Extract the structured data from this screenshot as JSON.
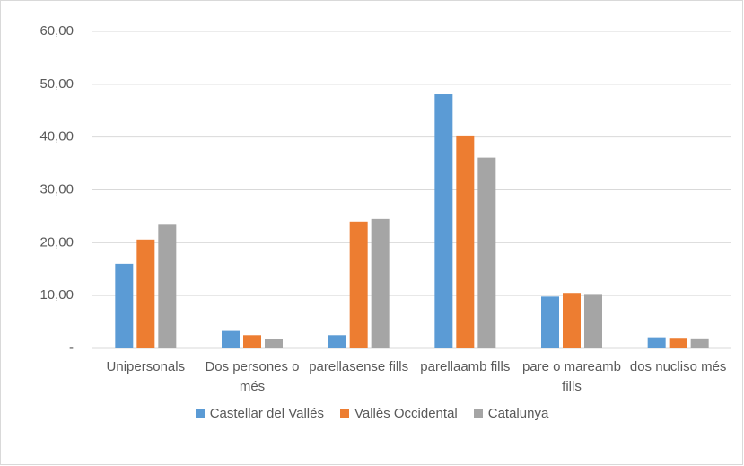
{
  "chart_data": {
    "type": "bar",
    "categories": [
      "Unipersonals",
      "Dos persones o més",
      "parellasense fills",
      "parellaamb fills",
      "pare o mareamb fills",
      "dos nucliso més"
    ],
    "series": [
      {
        "name": "Castellar del Vallés",
        "color": "#5b9bd5",
        "values": [
          16.0,
          3.3,
          2.5,
          48.1,
          9.8,
          2.1
        ]
      },
      {
        "name": "Vallès Occidental",
        "color": "#ed7d31",
        "values": [
          20.6,
          2.5,
          24.0,
          40.3,
          10.5,
          2.0
        ]
      },
      {
        "name": "Catalunya",
        "color": "#a5a5a5",
        "values": [
          23.4,
          1.7,
          24.5,
          36.1,
          10.3,
          1.9
        ]
      }
    ],
    "ylim": [
      0,
      60
    ],
    "yticks": [
      {
        "value": 0,
        "label": "-"
      },
      {
        "value": 10,
        "label": "10,00"
      },
      {
        "value": 20,
        "label": "20,00"
      },
      {
        "value": 30,
        "label": "30,00"
      },
      {
        "value": 40,
        "label": "40,00"
      },
      {
        "value": 50,
        "label": "50,00"
      },
      {
        "value": 60,
        "label": "60,00"
      }
    ],
    "grid": true,
    "legend": "bottom"
  }
}
